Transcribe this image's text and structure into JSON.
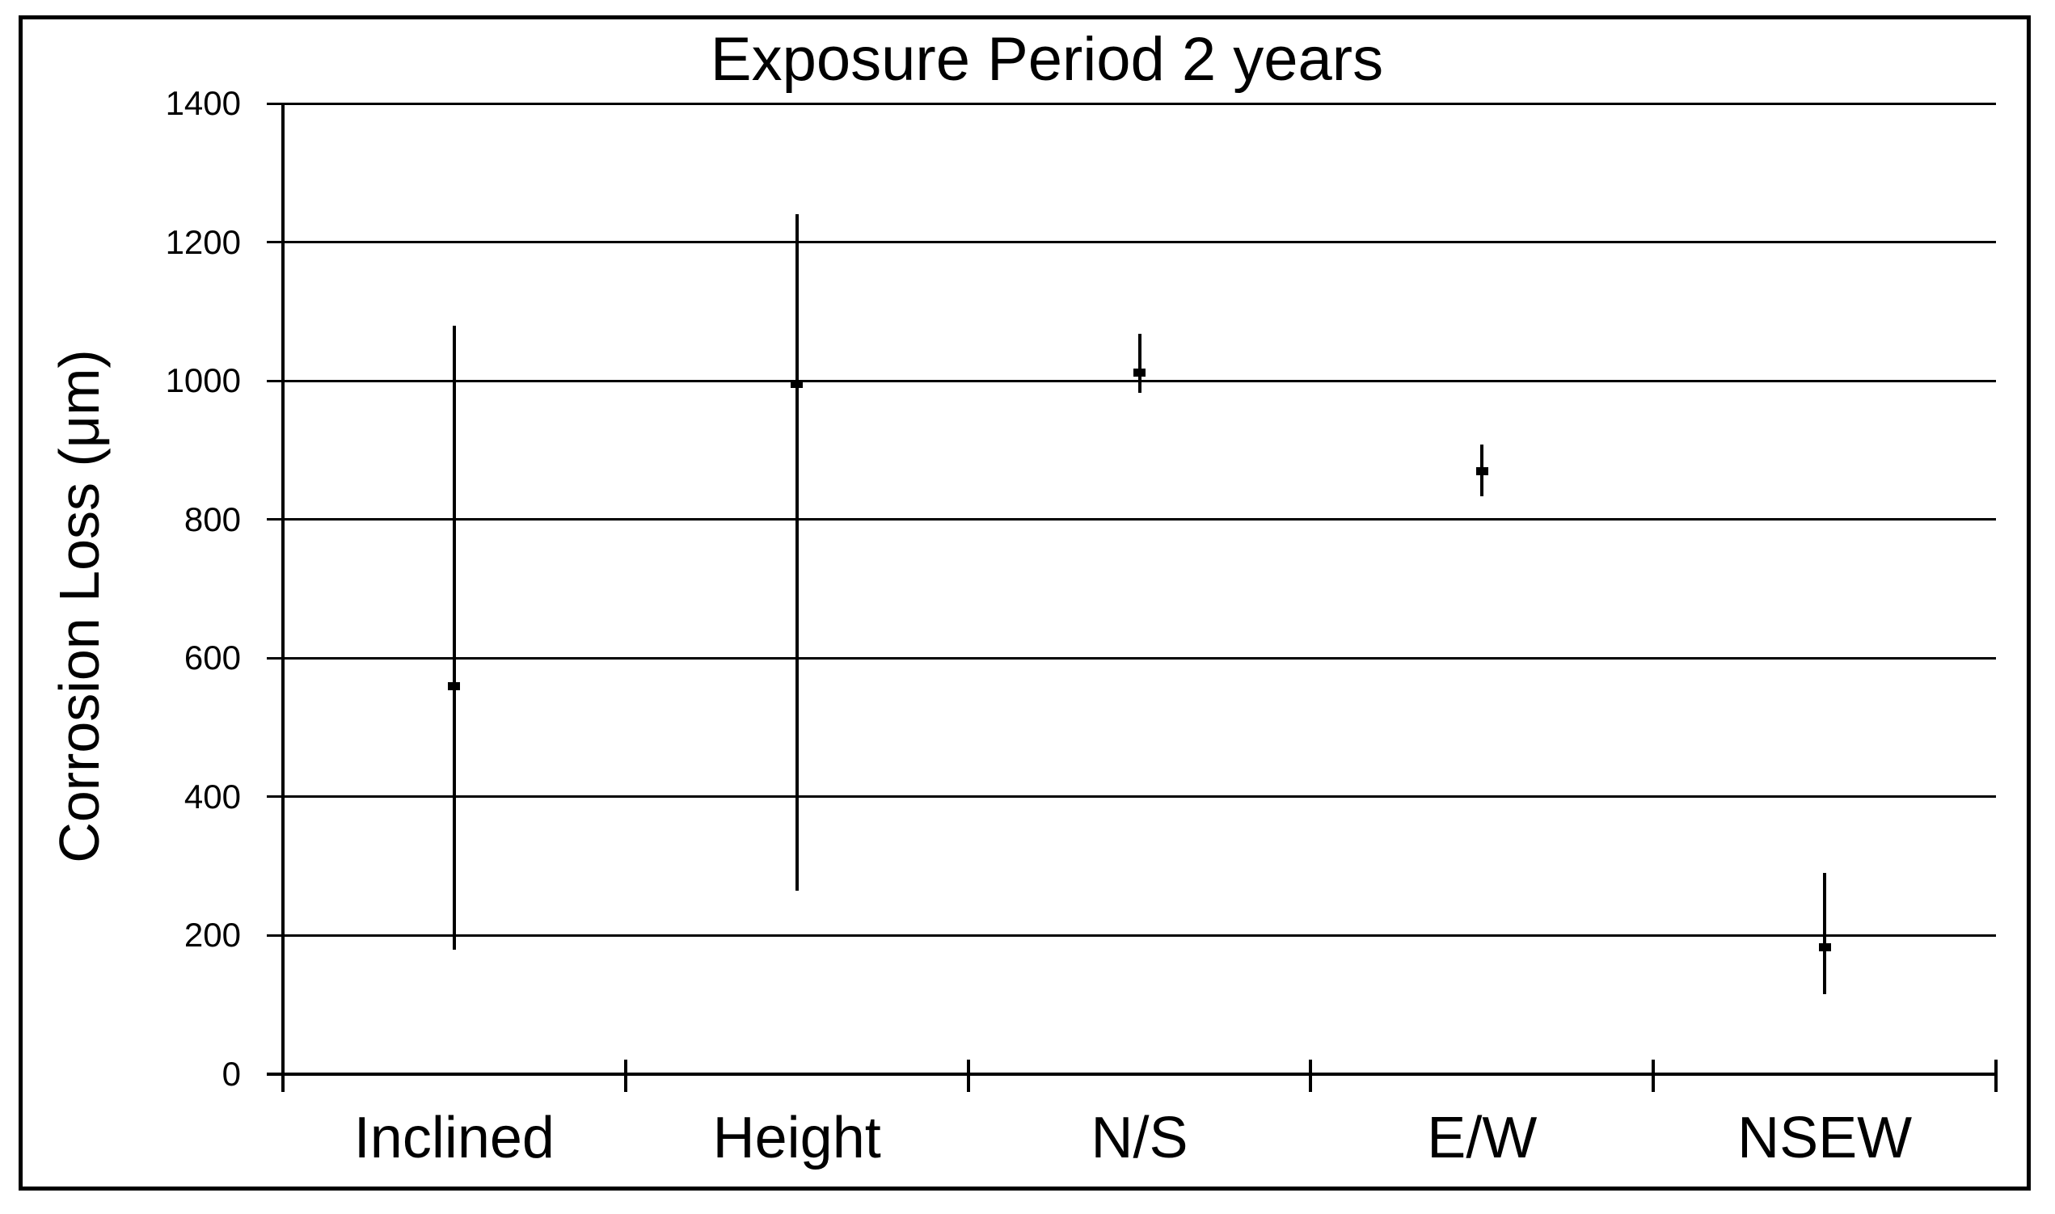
{
  "figure": {
    "title": "Exposure Period 2 years",
    "background_color": "#ffffff",
    "foreground_color": "#000000"
  },
  "chart_data": {
    "type": "scatter",
    "title": "Exposure Period 2 years",
    "xlabel": "",
    "ylabel": "Corrosion Loss (μm)",
    "categories": [
      "Inclined",
      "Height",
      "N/S",
      "E/W",
      "NSEW"
    ],
    "points": [
      {
        "category": "Inclined",
        "mean": 560,
        "min": 180,
        "max": 1080
      },
      {
        "category": "Height",
        "mean": 995,
        "min": 265,
        "max": 1240
      },
      {
        "category": "N/S",
        "mean": 1012,
        "min": 983,
        "max": 1068
      },
      {
        "category": "E/W",
        "mean": 870,
        "min": 833,
        "max": 908
      },
      {
        "category": "NSEW",
        "mean": 183,
        "min": 115,
        "max": 290
      }
    ],
    "error_bars": true,
    "marker": "square",
    "ylim": [
      0,
      1400
    ],
    "ytick_interval": 200,
    "yticks": [
      1400,
      1200,
      1000,
      800,
      600,
      400,
      200,
      0
    ],
    "ytick_labels": [
      "1400",
      "1200",
      "1000",
      "800",
      "600",
      "400",
      "200",
      "0"
    ],
    "grid": "horizontal",
    "legend": "none"
  }
}
